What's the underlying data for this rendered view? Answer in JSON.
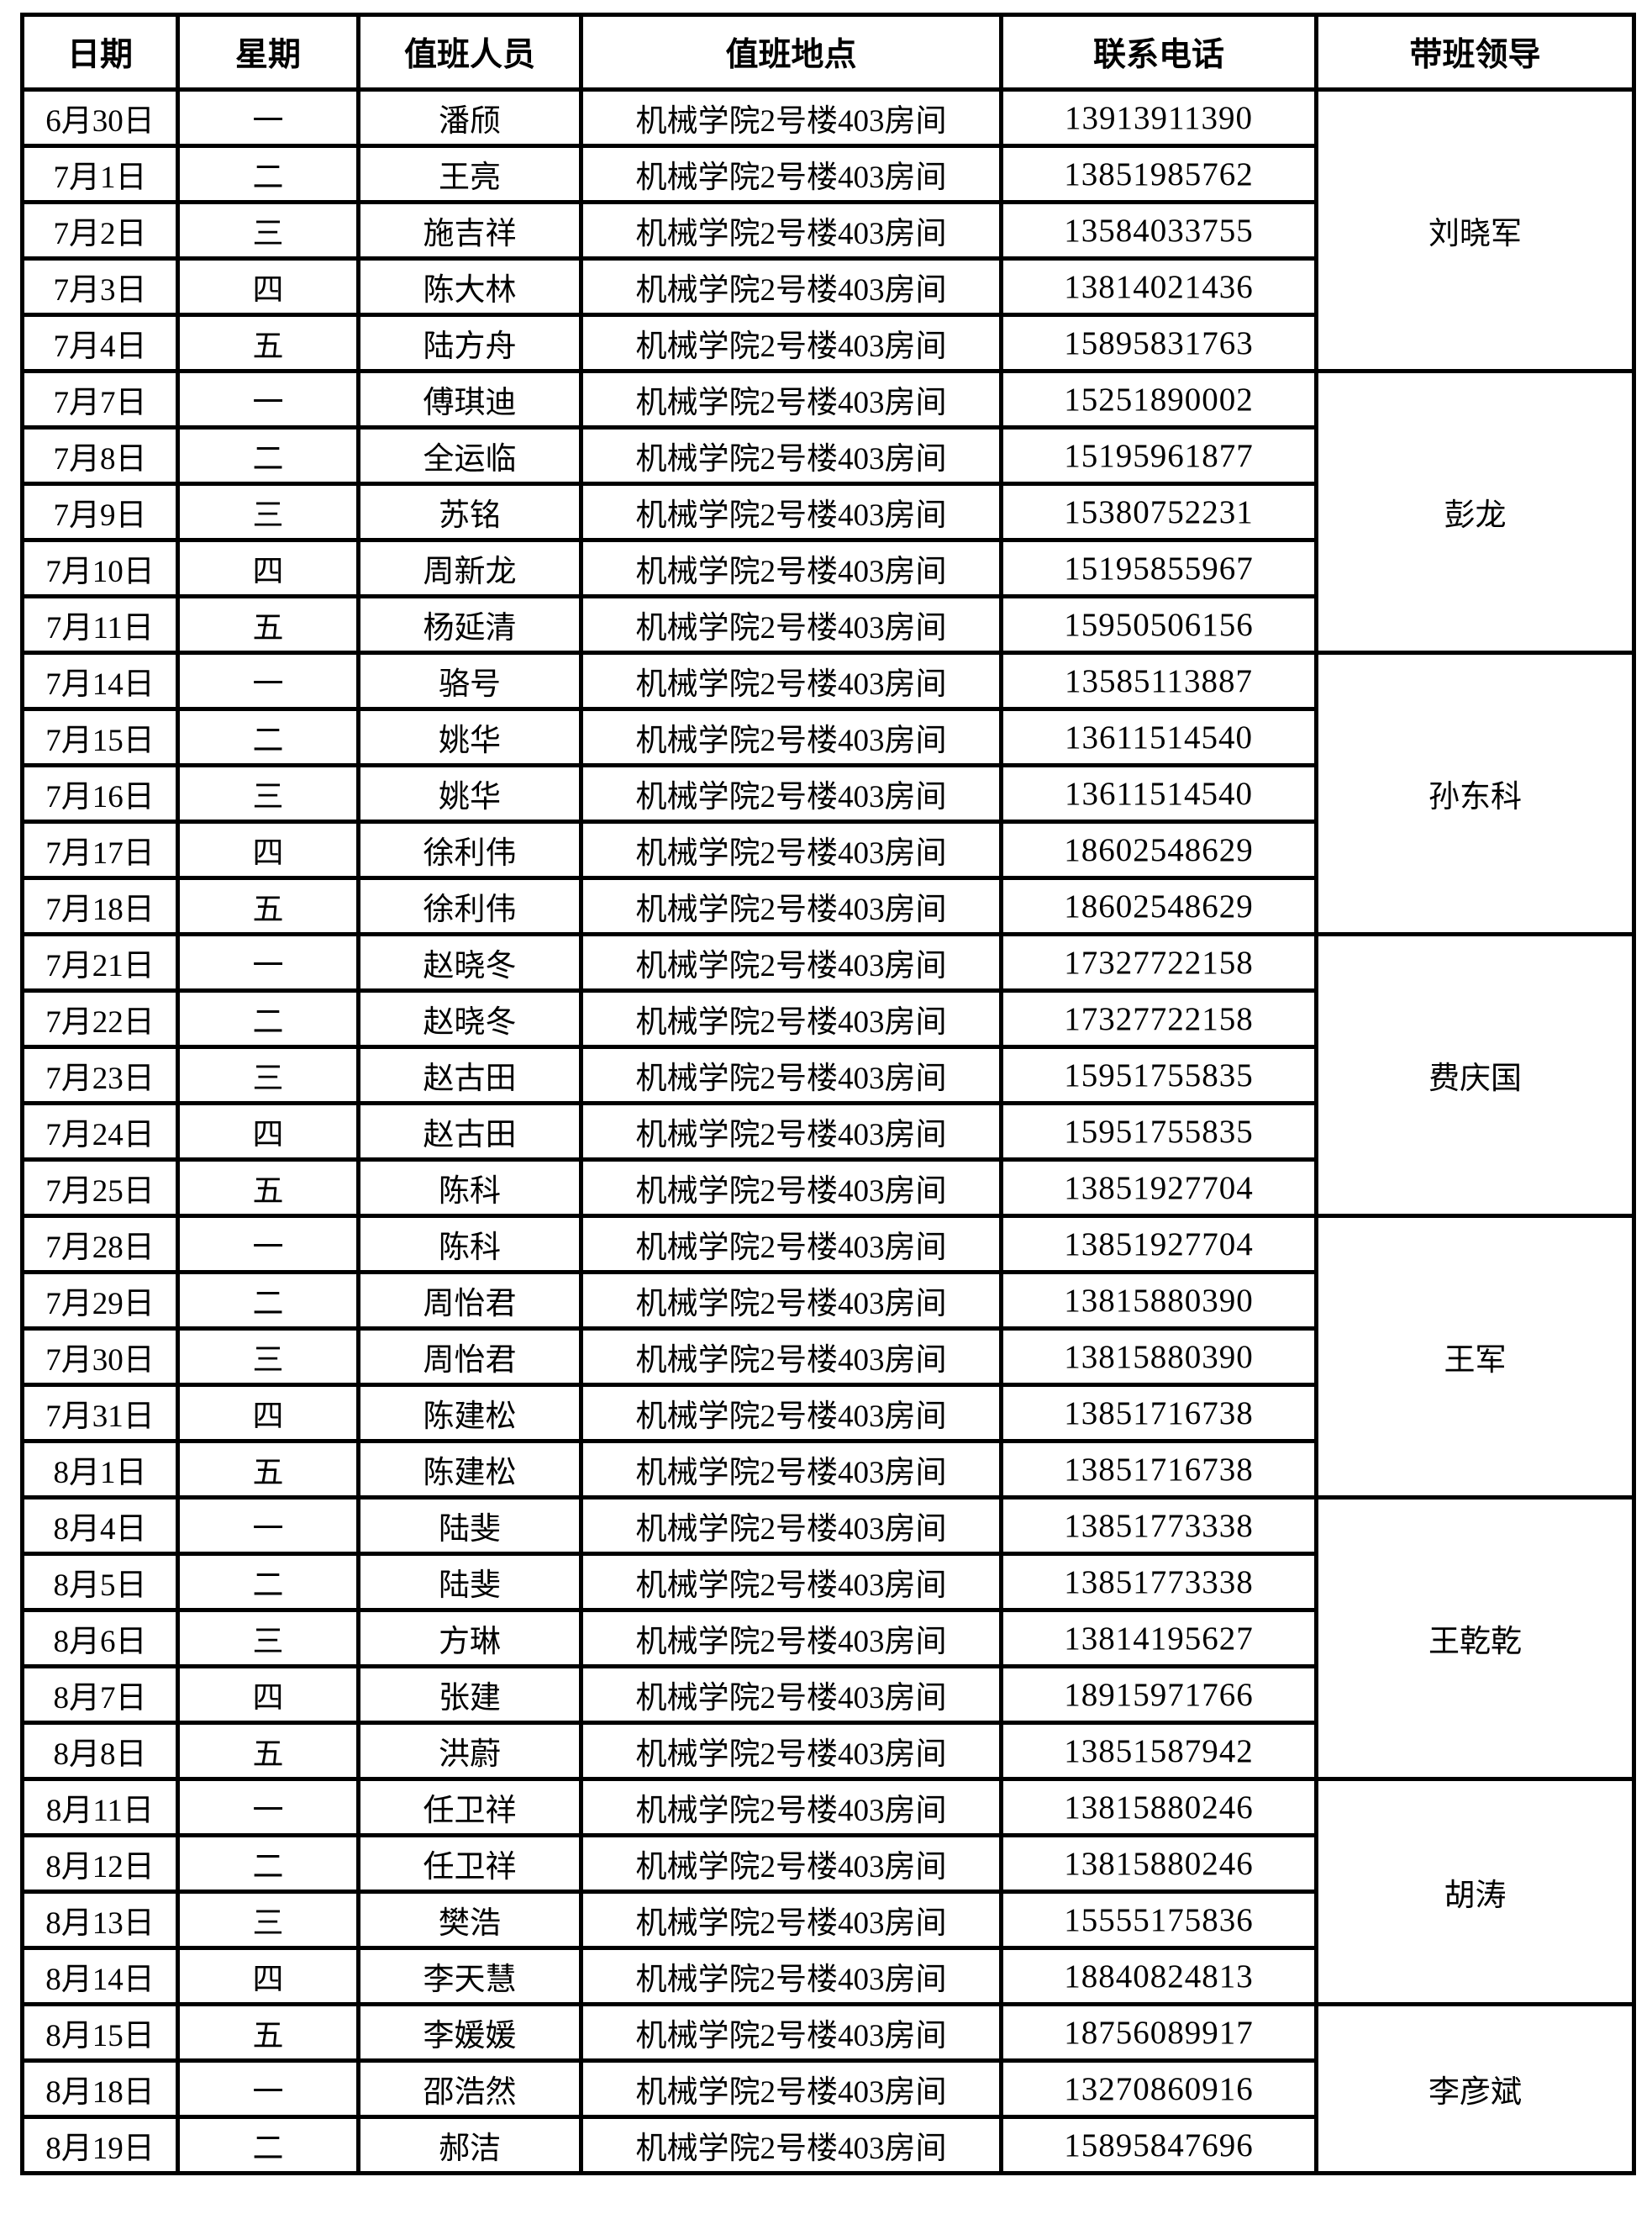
{
  "table": {
    "headers": [
      "日期",
      "星期",
      "值班人员",
      "值班地点",
      "联系电话",
      "带班领导"
    ],
    "groups": [
      {
        "leader": "刘晓军",
        "rows": [
          {
            "date": "6月30日",
            "weekday": "一",
            "person": "潘颀",
            "location": "机械学院2号楼403房间",
            "phone": "13913911390"
          },
          {
            "date": "7月1日",
            "weekday": "二",
            "person": "王亮",
            "location": "机械学院2号楼403房间",
            "phone": "13851985762"
          },
          {
            "date": "7月2日",
            "weekday": "三",
            "person": "施吉祥",
            "location": "机械学院2号楼403房间",
            "phone": "13584033755"
          },
          {
            "date": "7月3日",
            "weekday": "四",
            "person": "陈大林",
            "location": "机械学院2号楼403房间",
            "phone": "13814021436"
          },
          {
            "date": "7月4日",
            "weekday": "五",
            "person": "陆方舟",
            "location": "机械学院2号楼403房间",
            "phone": "15895831763"
          }
        ]
      },
      {
        "leader": "彭龙",
        "rows": [
          {
            "date": "7月7日",
            "weekday": "一",
            "person": "傅琪迪",
            "location": "机械学院2号楼403房间",
            "phone": "15251890002"
          },
          {
            "date": "7月8日",
            "weekday": "二",
            "person": "全运临",
            "location": "机械学院2号楼403房间",
            "phone": "15195961877"
          },
          {
            "date": "7月9日",
            "weekday": "三",
            "person": "苏铭",
            "location": "机械学院2号楼403房间",
            "phone": "15380752231"
          },
          {
            "date": "7月10日",
            "weekday": "四",
            "person": "周新龙",
            "location": "机械学院2号楼403房间",
            "phone": "15195855967"
          },
          {
            "date": "7月11日",
            "weekday": "五",
            "person": "杨延清",
            "location": "机械学院2号楼403房间",
            "phone": "15950506156"
          }
        ]
      },
      {
        "leader": "孙东科",
        "rows": [
          {
            "date": "7月14日",
            "weekday": "一",
            "person": "骆号",
            "location": "机械学院2号楼403房间",
            "phone": "13585113887"
          },
          {
            "date": "7月15日",
            "weekday": "二",
            "person": "姚华",
            "location": "机械学院2号楼403房间",
            "phone": "13611514540"
          },
          {
            "date": "7月16日",
            "weekday": "三",
            "person": "姚华",
            "location": "机械学院2号楼403房间",
            "phone": "13611514540"
          },
          {
            "date": "7月17日",
            "weekday": "四",
            "person": "徐利伟",
            "location": "机械学院2号楼403房间",
            "phone": "18602548629"
          },
          {
            "date": "7月18日",
            "weekday": "五",
            "person": "徐利伟",
            "location": "机械学院2号楼403房间",
            "phone": "18602548629"
          }
        ]
      },
      {
        "leader": "费庆国",
        "rows": [
          {
            "date": "7月21日",
            "weekday": "一",
            "person": "赵晓冬",
            "location": "机械学院2号楼403房间",
            "phone": "17327722158"
          },
          {
            "date": "7月22日",
            "weekday": "二",
            "person": "赵晓冬",
            "location": "机械学院2号楼403房间",
            "phone": "17327722158"
          },
          {
            "date": "7月23日",
            "weekday": "三",
            "person": "赵古田",
            "location": "机械学院2号楼403房间",
            "phone": "15951755835"
          },
          {
            "date": "7月24日",
            "weekday": "四",
            "person": "赵古田",
            "location": "机械学院2号楼403房间",
            "phone": "15951755835"
          },
          {
            "date": "7月25日",
            "weekday": "五",
            "person": "陈科",
            "location": "机械学院2号楼403房间",
            "phone": "13851927704"
          }
        ]
      },
      {
        "leader": "王军",
        "rows": [
          {
            "date": "7月28日",
            "weekday": "一",
            "person": "陈科",
            "location": "机械学院2号楼403房间",
            "phone": "13851927704"
          },
          {
            "date": "7月29日",
            "weekday": "二",
            "person": "周怡君",
            "location": "机械学院2号楼403房间",
            "phone": "13815880390"
          },
          {
            "date": "7月30日",
            "weekday": "三",
            "person": "周怡君",
            "location": "机械学院2号楼403房间",
            "phone": "13815880390"
          },
          {
            "date": "7月31日",
            "weekday": "四",
            "person": "陈建松",
            "location": "机械学院2号楼403房间",
            "phone": "13851716738"
          },
          {
            "date": "8月1日",
            "weekday": "五",
            "person": "陈建松",
            "location": "机械学院2号楼403房间",
            "phone": "13851716738"
          }
        ]
      },
      {
        "leader": "王乾乾",
        "rows": [
          {
            "date": "8月4日",
            "weekday": "一",
            "person": "陆斐",
            "location": "机械学院2号楼403房间",
            "phone": "13851773338"
          },
          {
            "date": "8月5日",
            "weekday": "二",
            "person": "陆斐",
            "location": "机械学院2号楼403房间",
            "phone": "13851773338"
          },
          {
            "date": "8月6日",
            "weekday": "三",
            "person": "方琳",
            "location": "机械学院2号楼403房间",
            "phone": "13814195627"
          },
          {
            "date": "8月7日",
            "weekday": "四",
            "person": "张建",
            "location": "机械学院2号楼403房间",
            "phone": "18915971766"
          },
          {
            "date": "8月8日",
            "weekday": "五",
            "person": "洪蔚",
            "location": "机械学院2号楼403房间",
            "phone": "13851587942"
          }
        ]
      },
      {
        "leader": "胡涛",
        "rows": [
          {
            "date": "8月11日",
            "weekday": "一",
            "person": "任卫祥",
            "location": "机械学院2号楼403房间",
            "phone": "13815880246"
          },
          {
            "date": "8月12日",
            "weekday": "二",
            "person": "任卫祥",
            "location": "机械学院2号楼403房间",
            "phone": "13815880246"
          },
          {
            "date": "8月13日",
            "weekday": "三",
            "person": "樊浩",
            "location": "机械学院2号楼403房间",
            "phone": "15555175836"
          },
          {
            "date": "8月14日",
            "weekday": "四",
            "person": "李天慧",
            "location": "机械学院2号楼403房间",
            "phone": "18840824813"
          }
        ]
      },
      {
        "leader": "李彦斌",
        "rows": [
          {
            "date": "8月15日",
            "weekday": "五",
            "person": "李媛媛",
            "location": "机械学院2号楼403房间",
            "phone": "18756089917"
          },
          {
            "date": "8月18日",
            "weekday": "一",
            "person": "邵浩然",
            "location": "机械学院2号楼403房间",
            "phone": "13270860916"
          },
          {
            "date": "8月19日",
            "weekday": "二",
            "person": "郝洁",
            "location": "机械学院2号楼403房间",
            "phone": "15895847696"
          }
        ]
      }
    ]
  }
}
